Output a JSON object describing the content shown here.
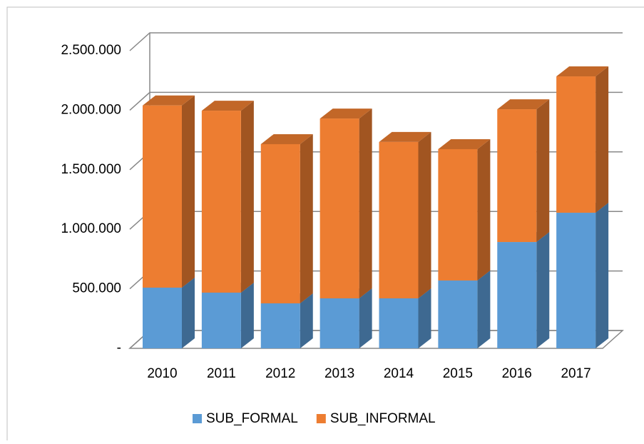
{
  "chart_data": {
    "type": "bar3d_stacked",
    "categories": [
      "2010",
      "2011",
      "2012",
      "2013",
      "2014",
      "2015",
      "2016",
      "2017"
    ],
    "series": [
      {
        "name": "SUB_FORMAL",
        "color": "#5b9bd5",
        "values": [
          510000,
          468000,
          378000,
          420000,
          420000,
          570000,
          893000,
          1139000
        ]
      },
      {
        "name": "SUB_INFORMAL",
        "color": "#ed7d31",
        "values": [
          1530000,
          1528000,
          1337000,
          1510000,
          1313000,
          1103000,
          1115000,
          1145000
        ]
      }
    ],
    "ylim": [
      0,
      2500000
    ],
    "yticks": [
      {
        "value": 0,
        "label": "-"
      },
      {
        "value": 500000,
        "label": "500.000"
      },
      {
        "value": 1000000,
        "label": "1.000.000"
      },
      {
        "value": 1500000,
        "label": "1.500.000"
      },
      {
        "value": 2000000,
        "label": "2.000.000"
      },
      {
        "value": 2500000,
        "label": "2.500.000"
      }
    ],
    "grid": true,
    "legend": "bottom"
  }
}
